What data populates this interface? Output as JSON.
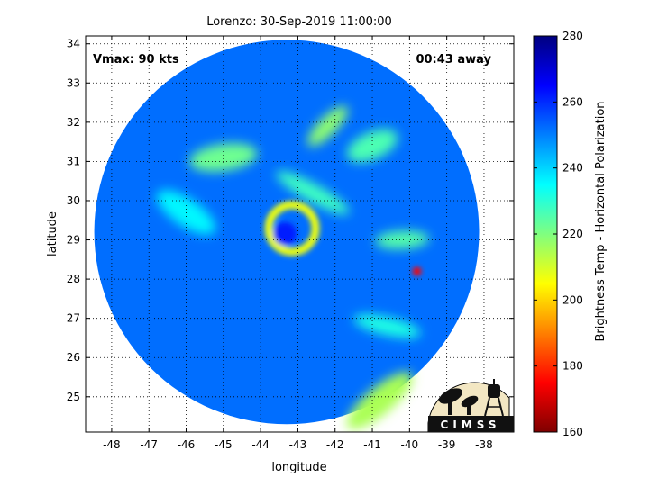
{
  "chart_data": {
    "type": "heatmap",
    "title": "Lorenzo: 30-Sep-2019 11:00:00",
    "xlabel": "longitude",
    "ylabel": "latitude",
    "xlim": [
      -48.7,
      -37.2
    ],
    "ylim": [
      24.1,
      34.2
    ],
    "x_ticks": [
      -48,
      -47,
      -46,
      -45,
      -44,
      -43,
      -42,
      -41,
      -40,
      -39,
      -38
    ],
    "y_ticks": [
      25,
      26,
      27,
      28,
      29,
      30,
      31,
      32,
      33,
      34
    ],
    "grid": true,
    "annotations": {
      "vmax": "Vmax: 90 kts",
      "away": "00:43 away"
    },
    "colorbar": {
      "label": "Brightness Temp - Horizontal Polarization",
      "min": 160,
      "max": 280,
      "ticks": [
        160,
        180,
        200,
        220,
        240,
        260,
        280
      ]
    },
    "storm": {
      "center_lon": -43.3,
      "center_lat": 29.2,
      "swath_radius_deg_lat": 4.9,
      "background_value": 252,
      "eye_value": 262,
      "eyewall_value": 207,
      "min_value": 175,
      "min_lon": -39.8,
      "min_lat": 28.2,
      "rainbands": [
        {
          "lon": -42.2,
          "lat": 31.9,
          "value": 218
        },
        {
          "lon": -45.0,
          "lat": 31.1,
          "value": 222
        },
        {
          "lon": -42.6,
          "lat": 30.2,
          "value": 228
        },
        {
          "lon": -41.0,
          "lat": 31.4,
          "value": 226
        },
        {
          "lon": -40.6,
          "lat": 26.8,
          "value": 232
        },
        {
          "lon": -40.8,
          "lat": 24.9,
          "value": 215
        },
        {
          "lon": -40.2,
          "lat": 29.0,
          "value": 225
        },
        {
          "lon": -46.0,
          "lat": 29.7,
          "value": 236
        }
      ]
    }
  },
  "logo": {
    "text": "CIMSS"
  },
  "colors": {
    "low": "#7f0000",
    "mid": "#ffff00",
    "high": "#00007f"
  }
}
